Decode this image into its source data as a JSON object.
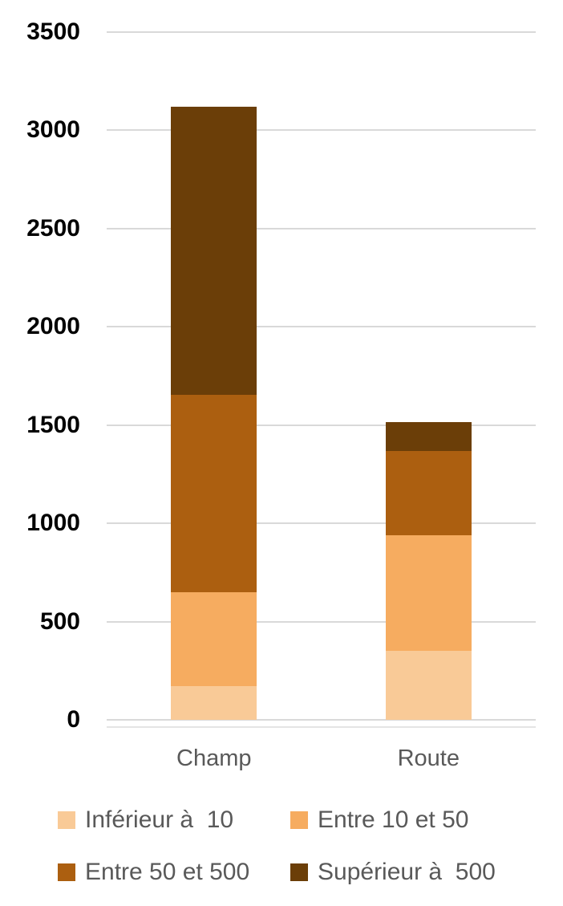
{
  "chart_data": {
    "type": "bar",
    "stacked": true,
    "title": "",
    "xlabel": "",
    "ylabel": "",
    "categories": [
      "Champ",
      "Route"
    ],
    "series": [
      {
        "name": "Inférieur à  10",
        "values": [
          170,
          350
        ],
        "color": "#F9CA97"
      },
      {
        "name": "Entre 10 et 50",
        "values": [
          480,
          590
        ],
        "color": "#F6AC60"
      },
      {
        "name": "Entre 50 et 500",
        "values": [
          1005,
          430
        ],
        "color": "#AC5F10"
      },
      {
        "name": "Supérieur à  500",
        "values": [
          1465,
          145
        ],
        "color": "#6B3E08"
      }
    ],
    "totals": [
      3120,
      1515
    ],
    "ylim": [
      0,
      3500
    ],
    "yticks": [
      0,
      500,
      1000,
      1500,
      2000,
      2500,
      3000,
      3500
    ],
    "grid": true,
    "legend_position": "bottom",
    "gridline_color": "#D9D9D9",
    "axis_line_color": "#E4E4E4",
    "axis_label_color": "#000000",
    "category_label_color": "#595959",
    "legend_text_color": "#595959",
    "background_color": "#FFFFFF"
  }
}
